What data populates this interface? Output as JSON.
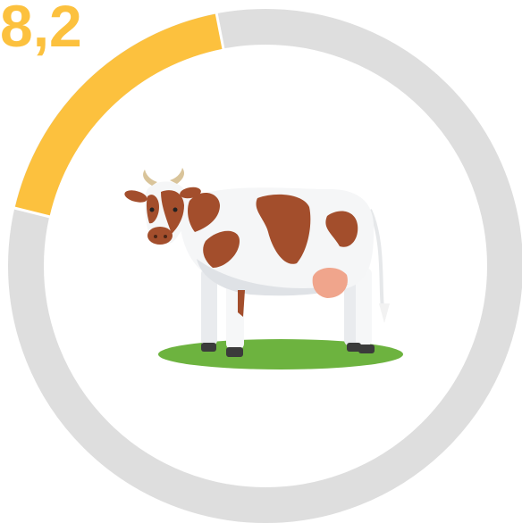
{
  "value_label": "8,2"
}
